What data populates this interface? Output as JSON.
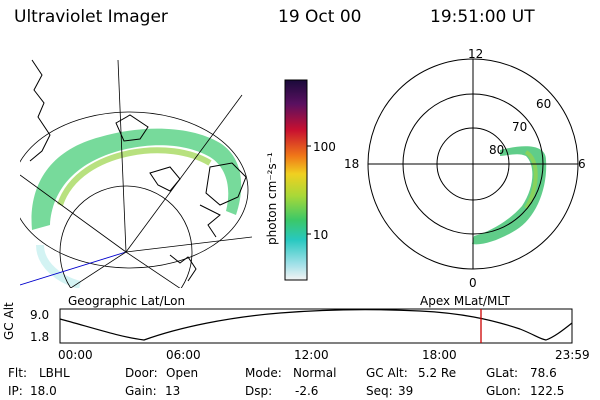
{
  "header": {
    "instrument": "Ultraviolet Imager",
    "date": "19 Oct 00",
    "time": "19:51:00 UT"
  },
  "geo_panel": {
    "caption": "Geographic Lat/Lon"
  },
  "colorbar": {
    "unit_label": "photon cm⁻²s⁻¹",
    "ticks": [
      "100",
      "10"
    ]
  },
  "polar_panel": {
    "caption": "Apex MLat/MLT",
    "mlt_labels": {
      "top": "12",
      "left": "18",
      "right": "6",
      "bottom": "0"
    },
    "lat_labels": [
      "60",
      "70",
      "80"
    ]
  },
  "orbit": {
    "ylabel": "GC Alt",
    "y_max": "9.0",
    "y_min": "1.8",
    "x_ticks": [
      "00:00",
      "06:00",
      "12:00",
      "18:00",
      "23:59"
    ],
    "marker_color": "#cc0000"
  },
  "status": {
    "row1": [
      {
        "key": "Flt:",
        "val": "LBHL"
      },
      {
        "key": "Door:",
        "val": "Open"
      },
      {
        "key": "Mode:",
        "val": "Normal"
      },
      {
        "key": "GC Alt:",
        "val": "5.2 Re"
      },
      {
        "key": "GLat:",
        "val": "78.6"
      }
    ],
    "row2": [
      {
        "key": "IP:",
        "val": "18.0"
      },
      {
        "key": "Gain:",
        "val": "13"
      },
      {
        "key": "Dsp:",
        "val": "-2.6"
      },
      {
        "key": "Seq:",
        "val": "39"
      },
      {
        "key": "GLon:",
        "val": "122.5"
      }
    ]
  }
}
